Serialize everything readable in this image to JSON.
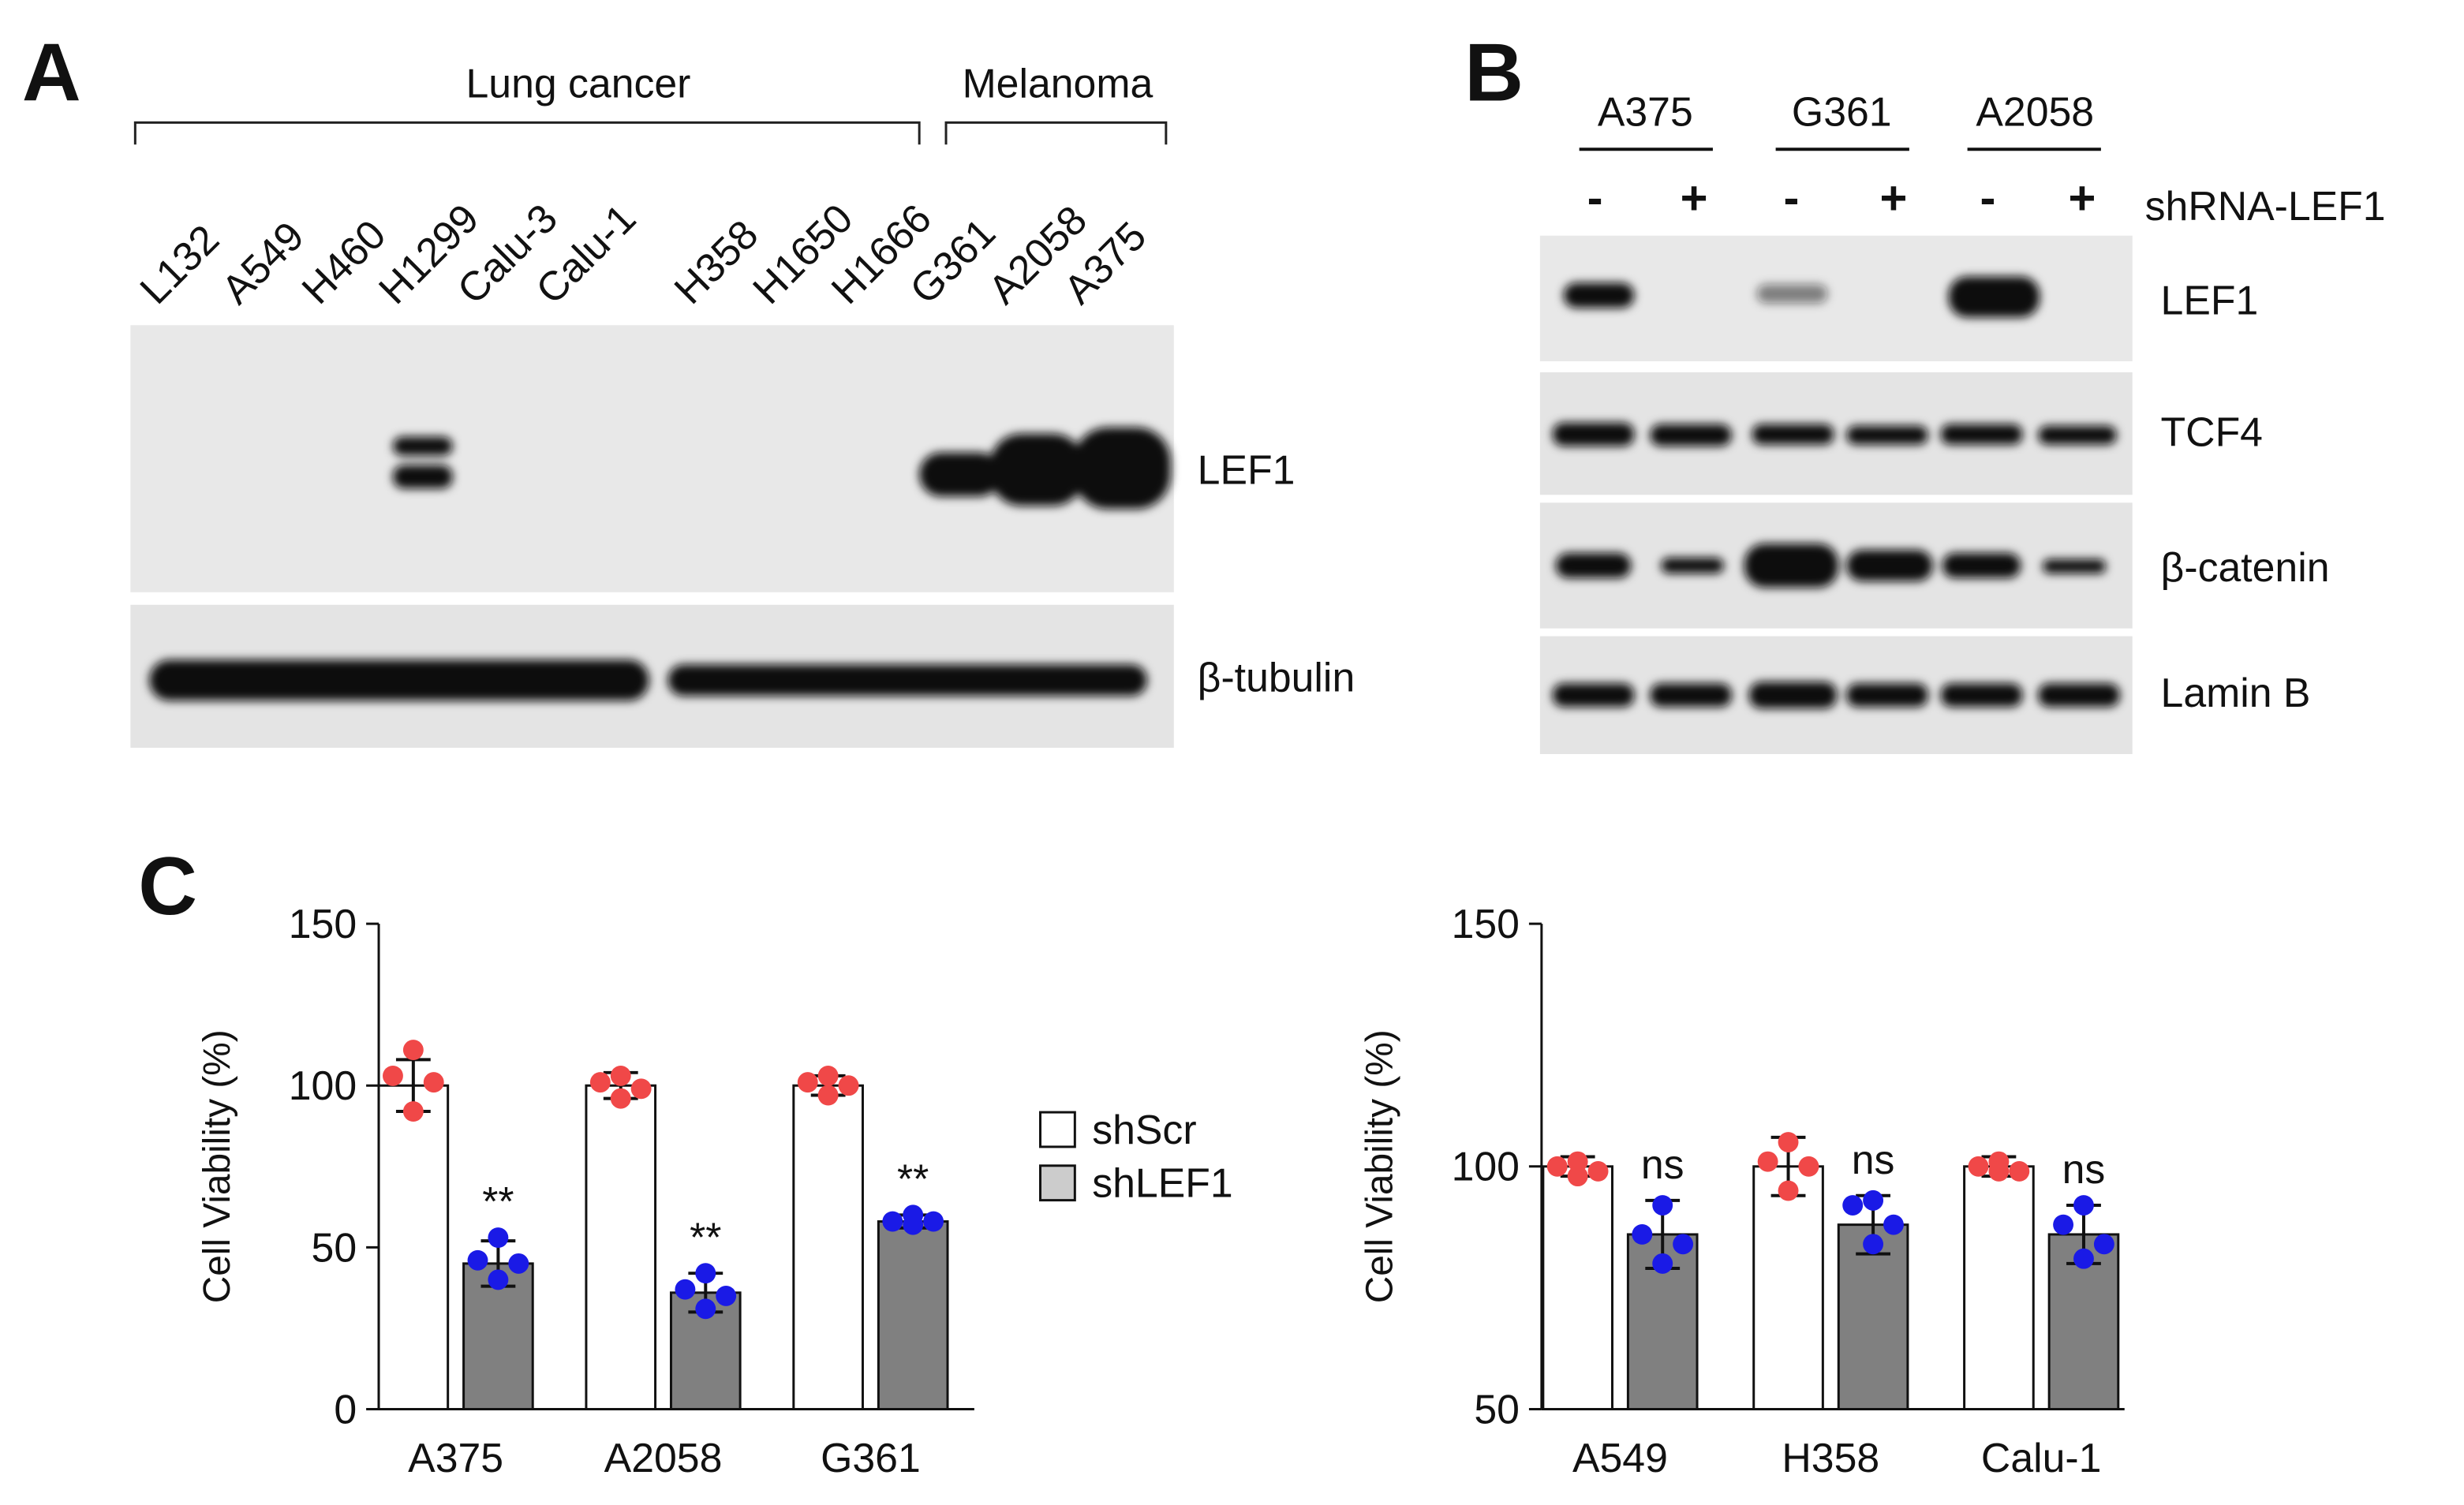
{
  "panel_labels": [
    "A",
    "B",
    "C"
  ],
  "blot_a": {
    "groups": [
      "Lung cancer",
      "Melanoma"
    ],
    "lanes": [
      "L132",
      "A549",
      "H460",
      "H1299",
      "Calu-3",
      "Calu-1",
      "H358",
      "H1650",
      "H1666",
      "G361",
      "A2058",
      "A375"
    ],
    "rows": [
      "LEF1",
      "β-tubulin"
    ]
  },
  "blot_b": {
    "groups": [
      "A375",
      "G361",
      "A2058"
    ],
    "treatment": [
      "-",
      "+",
      "-",
      "+",
      "-",
      "+"
    ],
    "treatment_label": "shRNA-LEF1",
    "rows": [
      "LEF1",
      "TCF4",
      "β-catenin",
      "Lamin B"
    ]
  },
  "chart_data": [
    {
      "type": "bar",
      "y_label": "Cell Viability (%)",
      "categories": [
        "A375",
        "A2058",
        "G361"
      ],
      "series": [
        {
          "name": "shScr",
          "color": "#ffffff",
          "point_color": "#f04848",
          "values": [
            100,
            100,
            100
          ],
          "errors": [
            8,
            4,
            3
          ],
          "points": [
            [
              111,
              103,
              101,
              92
            ],
            [
              103,
              101,
              99,
              96
            ],
            [
              103,
              101,
              100,
              97
            ]
          ]
        },
        {
          "name": "shLEF1",
          "color": "#808080",
          "point_color": "#1a1ae6",
          "values": [
            45,
            36,
            58
          ],
          "errors": [
            7,
            6,
            2
          ],
          "points": [
            [
              53,
              46,
              45,
              40
            ],
            [
              42,
              37,
              35,
              31
            ],
            [
              60,
              58,
              58,
              57
            ]
          ]
        }
      ],
      "annotations": [
        "**",
        "**",
        "**"
      ],
      "ylim": [
        0,
        150
      ],
      "yticks": [
        0,
        50,
        100,
        150
      ]
    },
    {
      "type": "bar",
      "y_label": "Cell Viability (%)",
      "categories": [
        "A549",
        "H358",
        "Calu-1"
      ],
      "series": [
        {
          "color": "#ffffff",
          "point_color": "#f04848",
          "values": [
            100,
            100,
            100
          ],
          "errors": [
            2,
            6,
            2
          ],
          "points": [
            [
              101,
              100,
              99,
              98
            ],
            [
              105,
              101,
              100,
              95
            ],
            [
              101,
              100,
              99,
              99
            ]
          ]
        },
        {
          "color": "#808080",
          "point_color": "#1a1ae6",
          "values": [
            86,
            88,
            86
          ],
          "errors": [
            7,
            6,
            6
          ],
          "points": [
            [
              92,
              86,
              84,
              80
            ],
            [
              93,
              92,
              88,
              84
            ],
            [
              92,
              88,
              84,
              81
            ]
          ]
        }
      ],
      "annotations": [
        "ns",
        "ns",
        "ns"
      ],
      "ylim": [
        50,
        150
      ],
      "yticks": [
        50,
        100,
        150
      ]
    }
  ]
}
